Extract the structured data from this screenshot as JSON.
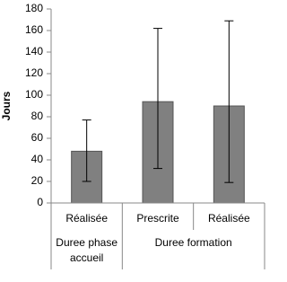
{
  "chart_data": {
    "type": "bar",
    "y_label": "Jours",
    "categories": [
      "Réalisée",
      "Prescrite",
      "Réalisée"
    ],
    "groups": [
      {
        "label_lines": [
          "Duree phase",
          "accueil"
        ],
        "size": 1
      },
      {
        "label_lines": [
          "Duree formation"
        ],
        "size": 2
      }
    ],
    "values": [
      48,
      94,
      90
    ],
    "error_low": [
      20,
      32,
      19
    ],
    "error_high": [
      77,
      162,
      169
    ],
    "color": "#808080",
    "ylim": [
      0,
      180
    ],
    "yticks": [
      0,
      20,
      40,
      60,
      80,
      100,
      120,
      140,
      160,
      180
    ]
  }
}
